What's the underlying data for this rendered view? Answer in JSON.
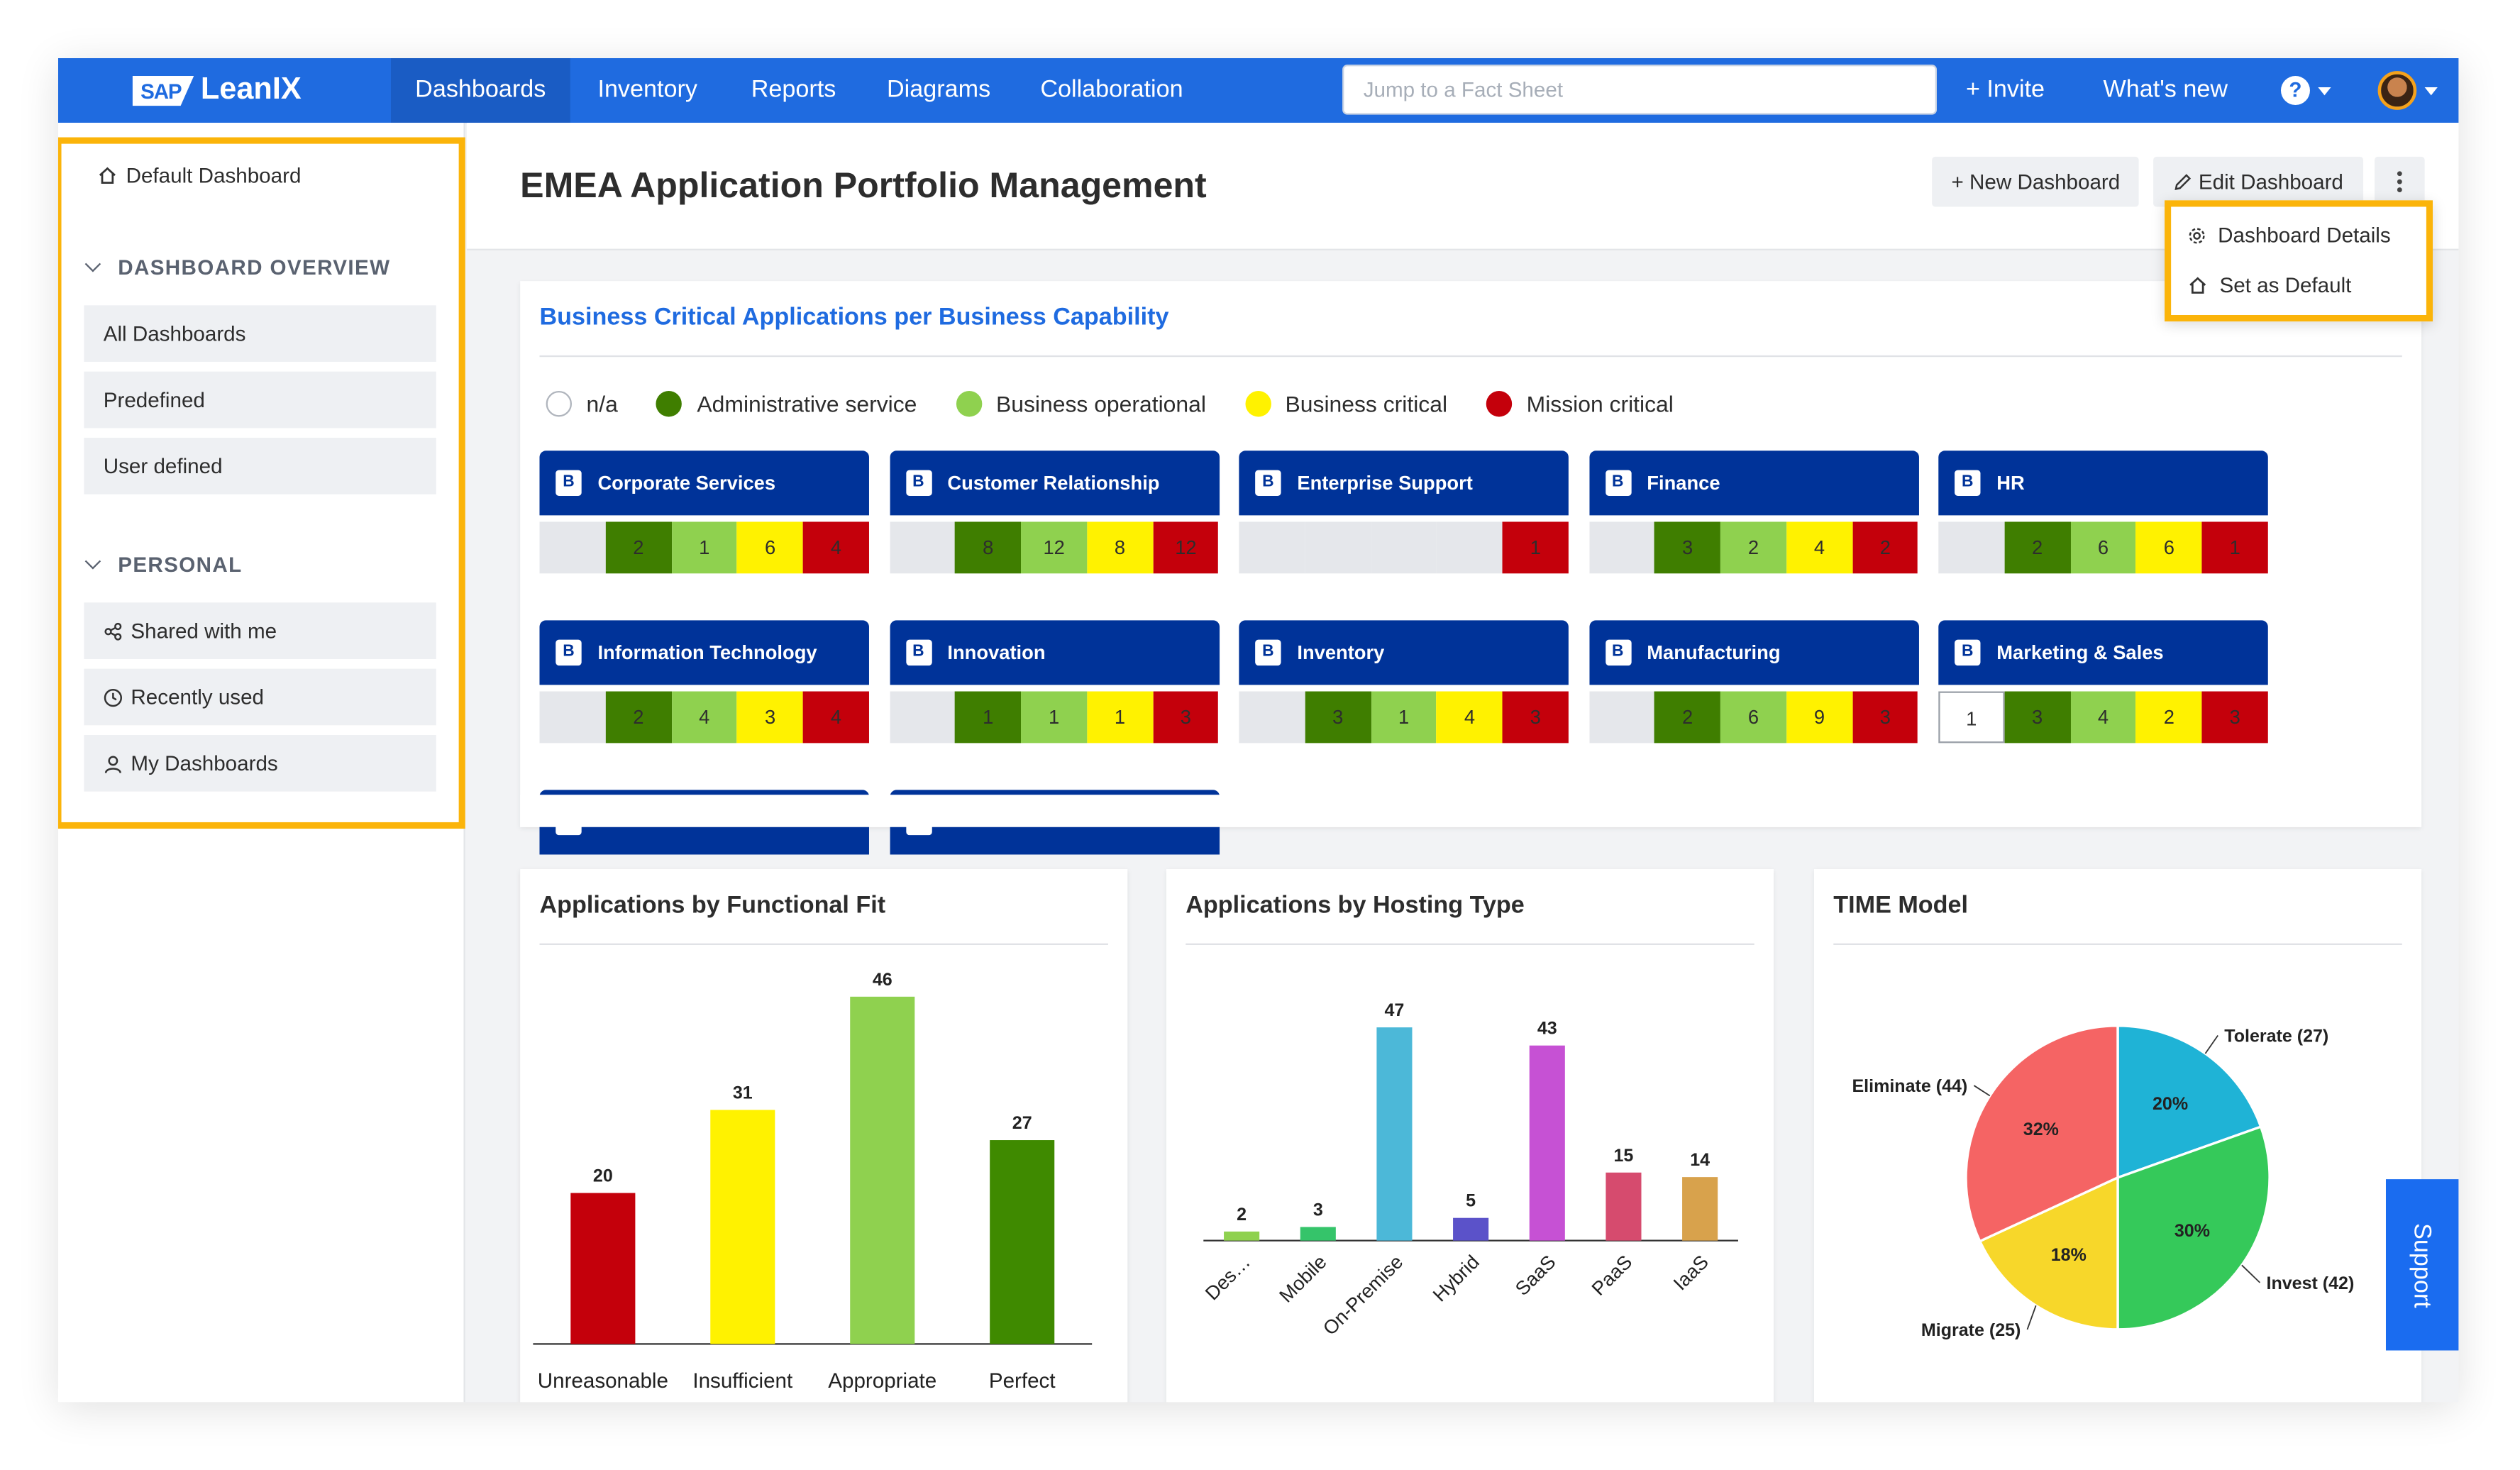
{
  "brand": {
    "sap": "SAP",
    "product": "LeanIX"
  },
  "nav": {
    "items": [
      "Dashboards",
      "Inventory",
      "Reports",
      "Diagrams",
      "Collaboration"
    ],
    "active": "Dashboards",
    "search_placeholder": "Jump to a Fact Sheet",
    "invite": "+ Invite",
    "whats_new": "What's new",
    "help": "?"
  },
  "sidebar": {
    "default_dashboard": "Default Dashboard",
    "overview_title": "DASHBOARD OVERVIEW",
    "overview_items": [
      "All Dashboards",
      "Predefined",
      "User defined"
    ],
    "personal_title": "PERSONAL",
    "personal_items": [
      {
        "label": "Shared with me",
        "icon": "share-icon"
      },
      {
        "label": "Recently used",
        "icon": "clock-icon"
      },
      {
        "label": "My Dashboards",
        "icon": "user-icon"
      }
    ]
  },
  "header": {
    "title": "EMEA Application Portfolio Management",
    "new_dashboard": "+ New Dashboard",
    "edit_dashboard": "Edit Dashboard",
    "menu": [
      "Dashboard Details",
      "Set as Default"
    ]
  },
  "colors": {
    "na": "#ffffff",
    "administrative": "#3f7e00",
    "operational": "#8fd14f",
    "critical": "#fff200",
    "mission": "#c4000b",
    "cap_blue": "#003399",
    "cell_empty": "#e5e7eb"
  },
  "capability_panel": {
    "title": "Business Critical Applications per Business Capability",
    "legend": [
      {
        "label": "n/a",
        "key": "na"
      },
      {
        "label": "Administrative service",
        "key": "administrative"
      },
      {
        "label": "Business operational",
        "key": "operational"
      },
      {
        "label": "Business critical",
        "key": "critical"
      },
      {
        "label": "Mission critical",
        "key": "mission"
      }
    ],
    "badge": "B",
    "capabilities": [
      {
        "name": "Corporate Services",
        "values": [
          null,
          2,
          1,
          6,
          4
        ]
      },
      {
        "name": "Customer Relationship",
        "values": [
          null,
          8,
          12,
          8,
          12
        ]
      },
      {
        "name": "Enterprise Support",
        "values": [
          null,
          null,
          null,
          null,
          1
        ]
      },
      {
        "name": "Finance",
        "values": [
          null,
          3,
          2,
          4,
          2
        ]
      },
      {
        "name": "HR",
        "values": [
          null,
          2,
          6,
          6,
          1
        ]
      },
      {
        "name": "Information Technology",
        "values": [
          null,
          2,
          4,
          3,
          4
        ]
      },
      {
        "name": "Innovation",
        "values": [
          null,
          1,
          1,
          1,
          3
        ]
      },
      {
        "name": "Inventory",
        "values": [
          null,
          3,
          1,
          4,
          3
        ]
      },
      {
        "name": "Manufacturing",
        "values": [
          null,
          2,
          6,
          9,
          3
        ]
      },
      {
        "name": "Marketing & Sales",
        "values": [
          1,
          3,
          4,
          2,
          3
        ]
      },
      {
        "name": "",
        "values": []
      },
      {
        "name": "",
        "values": []
      }
    ]
  },
  "chart_data": [
    {
      "type": "bar",
      "title": "Applications by Functional Fit",
      "categories": [
        "Unreasonable",
        "Insufficient",
        "Appropriate",
        "Perfect"
      ],
      "values": [
        20,
        31,
        46,
        27
      ],
      "colors": [
        "#c4000b",
        "#fff200",
        "#8fd14f",
        "#3f8a00"
      ],
      "ylim": [
        0,
        46
      ]
    },
    {
      "type": "bar",
      "title": "Applications by Hosting Type",
      "categories": [
        "Des…",
        "Mobile",
        "On-Premise",
        "Hybrid",
        "SaaS",
        "PaaS",
        "IaaS"
      ],
      "values": [
        2,
        3,
        47,
        5,
        43,
        15,
        14
      ],
      "colors": [
        "#8fd14f",
        "#35c46a",
        "#4cb8d8",
        "#5b52c9",
        "#c651d4",
        "#d64b6e",
        "#d8a24c"
      ],
      "ylim": [
        0,
        47
      ]
    },
    {
      "type": "pie",
      "title": "TIME Model",
      "slices": [
        {
          "label": "Tolerate (27)",
          "value": 27,
          "pct": "20%",
          "color": "#1fb3d6"
        },
        {
          "label": "Invest (42)",
          "value": 42,
          "pct": "30%",
          "color": "#35c95a"
        },
        {
          "label": "Migrate (25)",
          "value": 25,
          "pct": "18%",
          "color": "#f7d72a"
        },
        {
          "label": "Eliminate (44)",
          "value": 44,
          "pct": "32%",
          "color": "#f56464"
        }
      ]
    }
  ],
  "support": "Support"
}
